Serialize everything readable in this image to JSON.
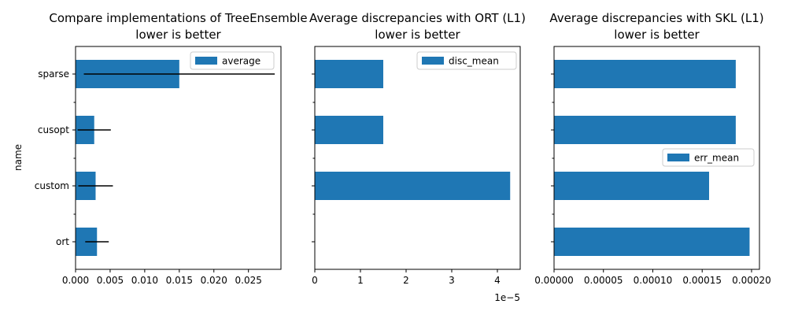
{
  "chart_data": [
    {
      "type": "bar",
      "orientation": "horizontal",
      "title": "Compare implementations of TreeEnsemble",
      "subtitle": "lower is better",
      "ylabel": "name",
      "xlabel": "",
      "categories": [
        "ort",
        "custom",
        "cusopt",
        "sparse"
      ],
      "series": [
        {
          "name": "average",
          "values": [
            0.0031,
            0.0029,
            0.0027,
            0.015
          ],
          "error": [
            0.0017,
            0.0025,
            0.0024,
            0.0138
          ]
        }
      ],
      "xlim": [
        0,
        0.0297
      ],
      "xticks": [
        0,
        0.005,
        0.01,
        0.015,
        0.02,
        0.025
      ],
      "xtick_labels": [
        "0.000",
        "0.005",
        "0.010",
        "0.015",
        "0.020",
        "0.025"
      ],
      "legend": "top-right",
      "color": "#1f77b4"
    },
    {
      "type": "bar",
      "orientation": "horizontal",
      "title": "Average discrepancies with ORT (L1)",
      "subtitle": "lower is better",
      "categories": [
        "ort",
        "custom",
        "cusopt",
        "sparse"
      ],
      "series": [
        {
          "name": "disc_mean",
          "values": [
            0,
            4.28e-05,
            1.5e-05,
            1.5e-05
          ]
        }
      ],
      "xlim": [
        0,
        4.5e-05
      ],
      "xticks": [
        0,
        1e-05,
        2e-05,
        3e-05,
        4e-05
      ],
      "xtick_labels": [
        "0",
        "1",
        "2",
        "3",
        "4"
      ],
      "offset_label": "1e−5",
      "legend": "top-right",
      "color": "#1f77b4"
    },
    {
      "type": "bar",
      "orientation": "horizontal",
      "title": "Average discrepancies with SKL (L1)",
      "subtitle": "lower is better",
      "categories": [
        "ort",
        "custom",
        "cusopt",
        "sparse"
      ],
      "series": [
        {
          "name": "err_mean",
          "values": [
            0.000198,
            0.000157,
            0.000184,
            0.000184
          ]
        }
      ],
      "xlim": [
        0,
        0.000208
      ],
      "xticks": [
        0,
        5e-05,
        0.0001,
        0.00015,
        0.0002
      ],
      "xtick_labels": [
        "0.00000",
        "0.00005",
        "0.00010",
        "0.00015",
        "0.00020"
      ],
      "legend": "center-right",
      "color": "#1f77b4"
    }
  ]
}
